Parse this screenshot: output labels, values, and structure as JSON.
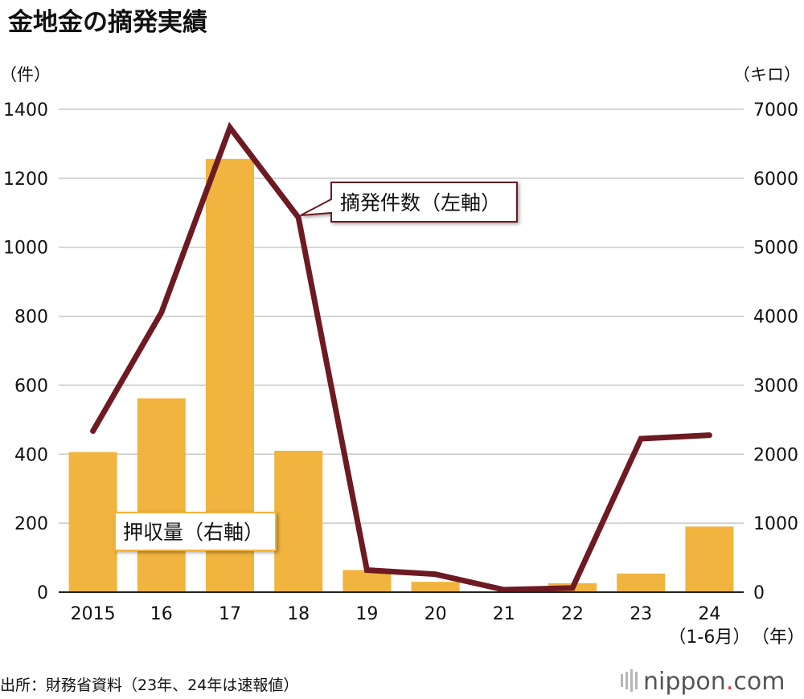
{
  "title": "金地金の摘発実績",
  "source": "出所：財務省資料（23年、24年は速報値）",
  "logo": {
    "text": "nippon",
    "dot": ".",
    "tld": "com"
  },
  "colors": {
    "bar": "#f0b43f",
    "line": "#6e1a22",
    "grid": "#c8c8c8",
    "axis": "#222222"
  },
  "chart_data": {
    "type": "bar+line",
    "categories": [
      "2015",
      "16",
      "17",
      "18",
      "19",
      "20",
      "21",
      "22",
      "23",
      "24"
    ],
    "category_sublabels": [
      "",
      "",
      "",
      "",
      "",
      "",
      "",
      "",
      "",
      "（1-6月）"
    ],
    "x_unit": "（年）",
    "left_axis": {
      "unit": "（件）",
      "ylim": [
        0,
        1400
      ],
      "ticks": [
        0,
        200,
        400,
        600,
        800,
        1000,
        1200,
        1400
      ]
    },
    "right_axis": {
      "unit": "（キロ）",
      "ylim": [
        0,
        7000
      ],
      "ticks": [
        0,
        1000,
        2000,
        3000,
        4000,
        5000,
        6000,
        7000
      ]
    },
    "series": [
      {
        "name": "押収量（右軸）",
        "kind": "bar",
        "axis": "right",
        "values": [
          2030,
          2810,
          6280,
          2050,
          320,
          150,
          10,
          130,
          270,
          950
        ]
      },
      {
        "name": "摘発件数（左軸）",
        "kind": "line",
        "axis": "left",
        "values": [
          467,
          811,
          1347,
          1086,
          64,
          52,
          7,
          12,
          445,
          455
        ]
      }
    ],
    "grid": true
  }
}
